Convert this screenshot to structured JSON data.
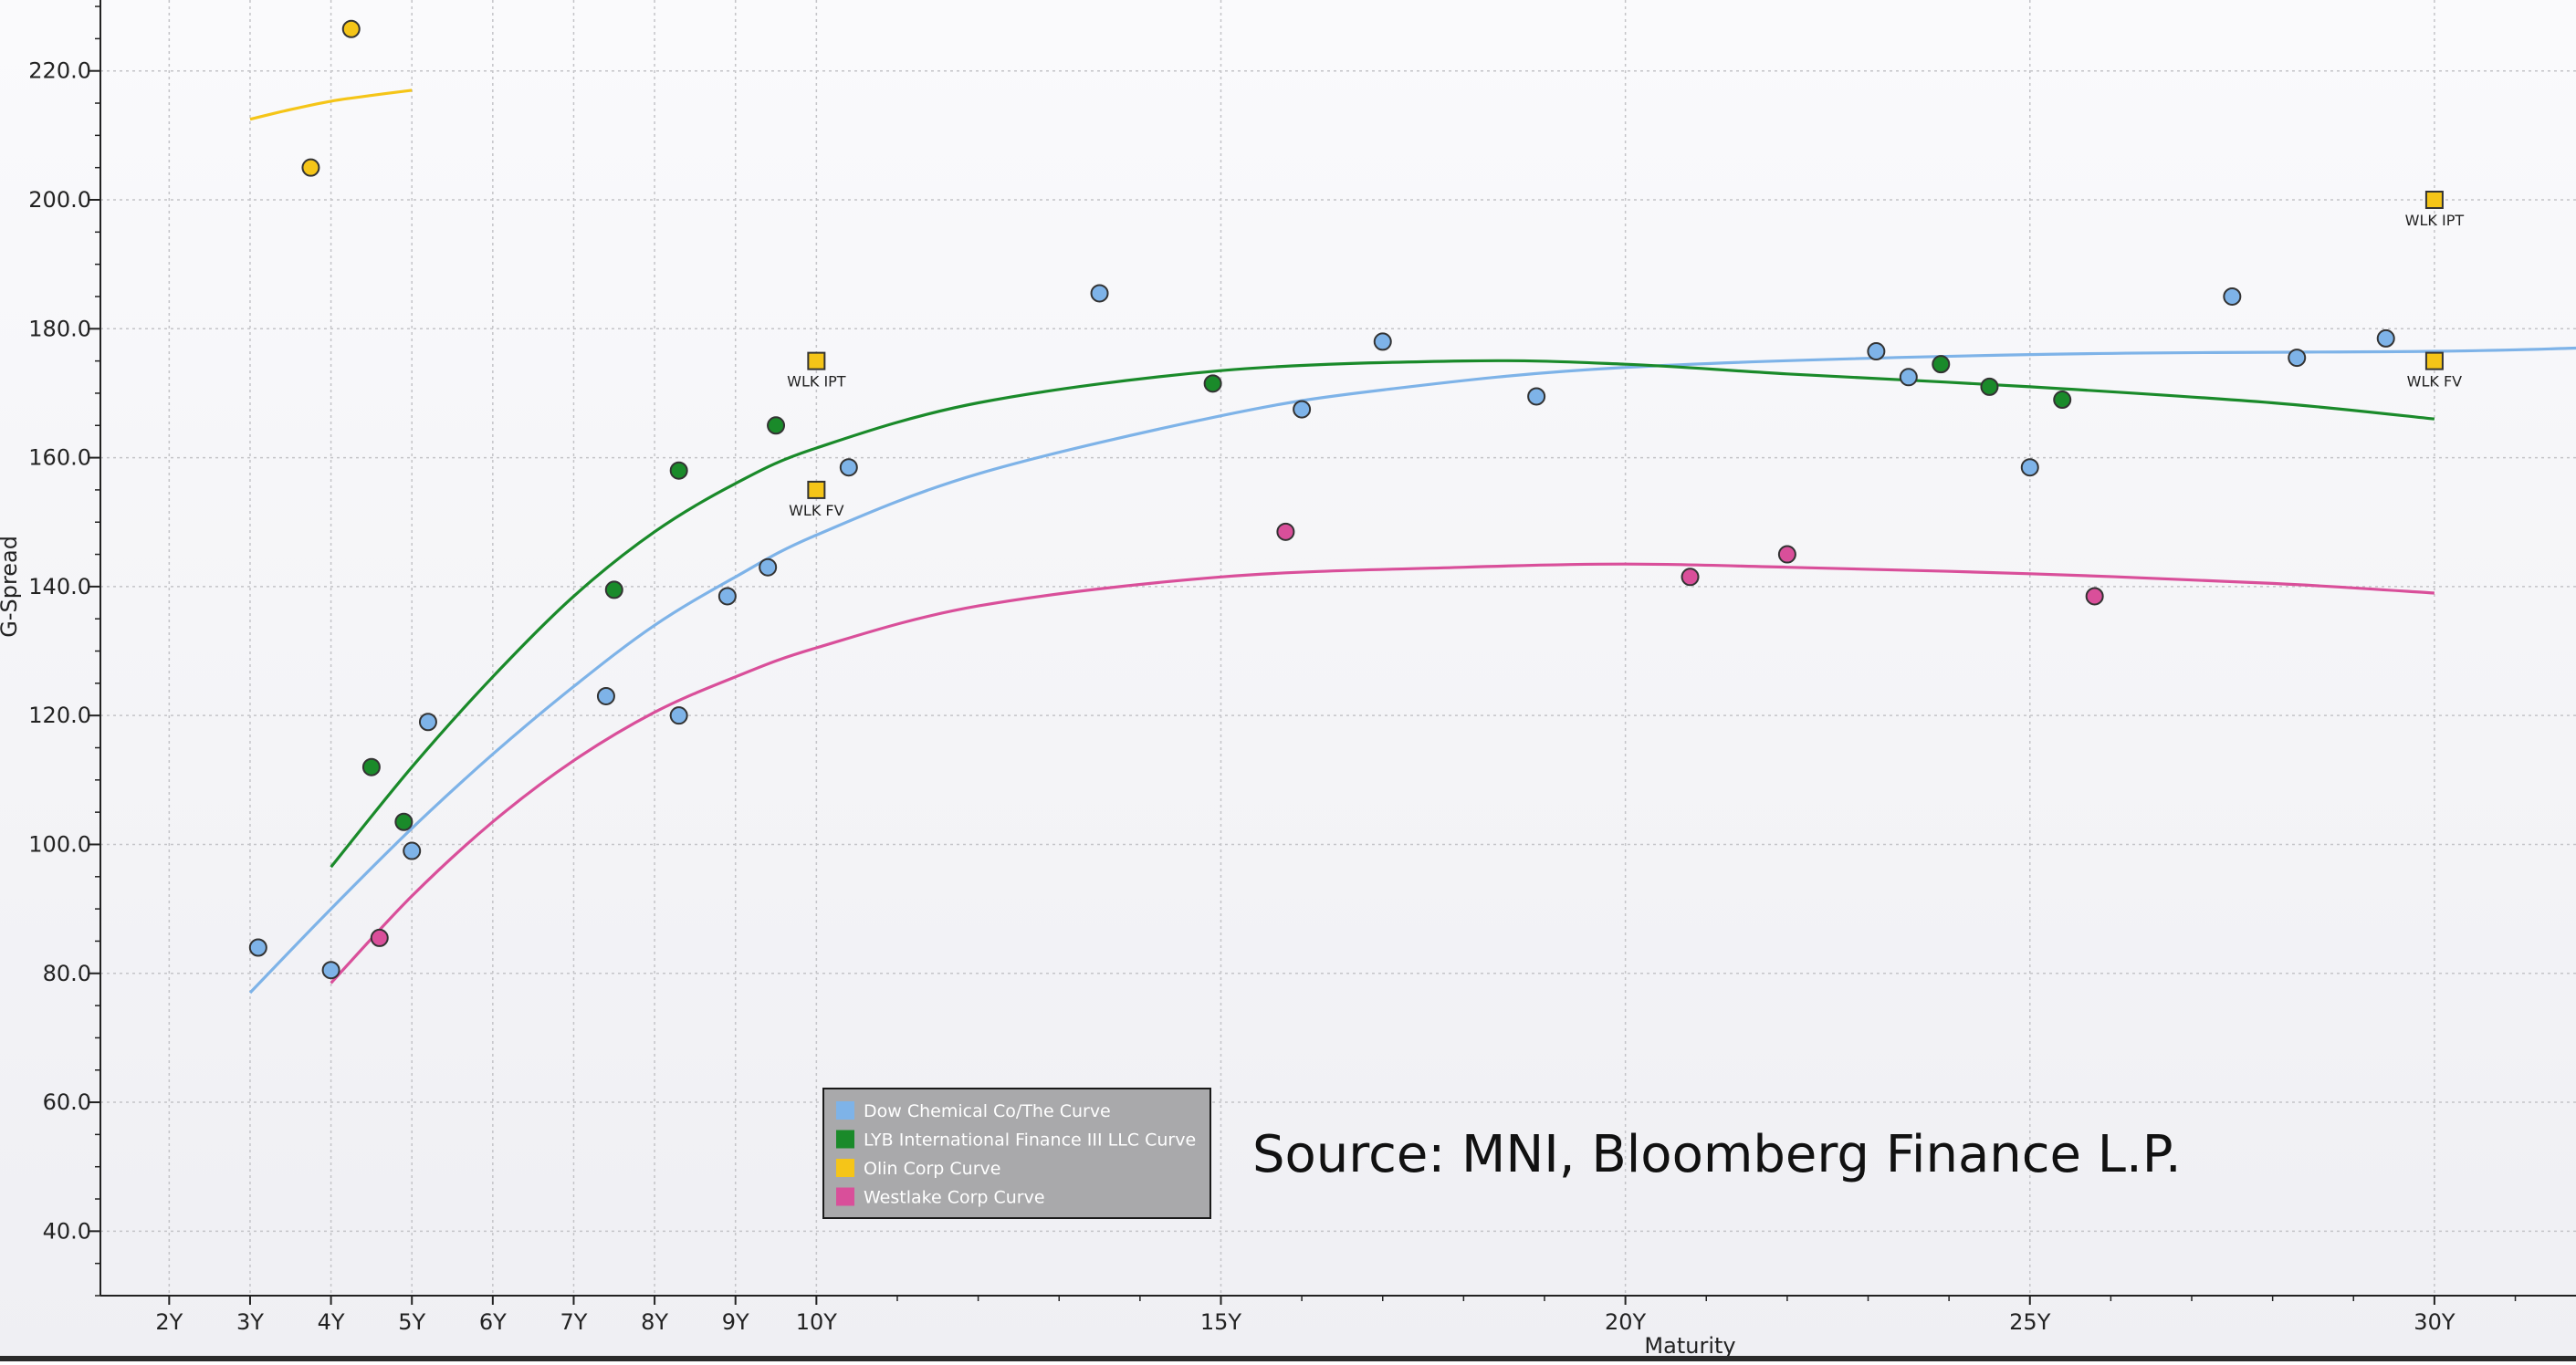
{
  "chart_data": {
    "type": "scatter",
    "title": "",
    "xlabel": "Maturity",
    "ylabel": "G-Spread",
    "source_note": "Source: MNI, Bloomberg Finance L.P.",
    "xlim": [
      1.15,
      31.75
    ],
    "ylim": [
      30,
      231
    ],
    "grid": true,
    "legend_position": "bottom-center",
    "x_ticks": [
      2,
      3,
      4,
      5,
      6,
      7,
      8,
      9,
      10,
      15,
      20,
      25,
      30
    ],
    "x_tick_labels": [
      "2Y",
      "3Y",
      "4Y",
      "5Y",
      "6Y",
      "7Y",
      "8Y",
      "9Y",
      "10Y",
      "15Y",
      "20Y",
      "25Y",
      "30Y"
    ],
    "y_ticks": [
      40,
      60,
      80,
      100,
      120,
      140,
      160,
      180,
      200,
      220
    ],
    "y_tick_labels": [
      "40.0",
      "60.0",
      "80.0",
      "100.0",
      "120.0",
      "140.0",
      "160.0",
      "180.0",
      "200.0",
      "220.0"
    ],
    "series": [
      {
        "name": "Dow Chemical Co/The Curve",
        "color": "#7eb3e8",
        "curve_color": "#7eb3e8",
        "points": [
          [
            3.1,
            84
          ],
          [
            4.0,
            80.5
          ],
          [
            5.0,
            99
          ],
          [
            5.2,
            119
          ],
          [
            7.4,
            123
          ],
          [
            8.3,
            120
          ],
          [
            8.9,
            138.5
          ],
          [
            9.4,
            143
          ],
          [
            10.4,
            158.5
          ],
          [
            13.5,
            185.5
          ],
          [
            16.0,
            167.5
          ],
          [
            17.0,
            178
          ],
          [
            18.9,
            169.5
          ],
          [
            23.1,
            176.5
          ],
          [
            23.5,
            172.5
          ],
          [
            25.0,
            158.5
          ],
          [
            27.5,
            185
          ],
          [
            28.3,
            175.5
          ],
          [
            29.4,
            178.5
          ]
        ],
        "curve": [
          [
            3,
            77
          ],
          [
            4,
            90
          ],
          [
            5,
            102.5
          ],
          [
            6,
            114
          ],
          [
            7,
            124.5
          ],
          [
            8,
            134
          ],
          [
            9,
            141.5
          ],
          [
            10,
            148
          ],
          [
            12,
            157.5
          ],
          [
            15,
            166.5
          ],
          [
            17,
            170.5
          ],
          [
            20,
            174
          ],
          [
            25,
            176
          ],
          [
            30,
            176.5
          ],
          [
            31.75,
            177
          ]
        ]
      },
      {
        "name": "LYB International Finance III LLC Curve",
        "color": "#1a8a2a",
        "curve_color": "#1a8a2a",
        "points": [
          [
            4.5,
            112
          ],
          [
            4.9,
            103.5
          ],
          [
            7.5,
            139.5
          ],
          [
            8.3,
            158
          ],
          [
            9.5,
            165
          ],
          [
            14.9,
            171.5
          ],
          [
            23.9,
            174.5
          ],
          [
            24.5,
            171
          ],
          [
            25.4,
            169
          ]
        ],
        "curve": [
          [
            4,
            96.5
          ],
          [
            5,
            112
          ],
          [
            6,
            126
          ],
          [
            7,
            138.5
          ],
          [
            8,
            148.5
          ],
          [
            9,
            156
          ],
          [
            10,
            161.5
          ],
          [
            12,
            168.5
          ],
          [
            15,
            173.5
          ],
          [
            18,
            175
          ],
          [
            20,
            174.5
          ],
          [
            22,
            173
          ],
          [
            25,
            171
          ],
          [
            28,
            168.5
          ],
          [
            30,
            166
          ]
        ]
      },
      {
        "name": "Olin Corp Curve",
        "color": "#f5c518",
        "curve_color": "#f5c518",
        "points": [
          [
            3.75,
            205
          ],
          [
            4.25,
            226.5
          ]
        ],
        "curve": [
          [
            3,
            212.5
          ],
          [
            3.5,
            214
          ],
          [
            4,
            215.3
          ],
          [
            4.5,
            216.2
          ],
          [
            5,
            217
          ]
        ]
      },
      {
        "name": "Westlake Corp Curve",
        "color": "#d94f9a",
        "curve_color": "#d94f9a",
        "points": [
          [
            4.6,
            85.5
          ],
          [
            15.8,
            148.5
          ],
          [
            20.8,
            141.5
          ],
          [
            22.0,
            145
          ],
          [
            25.8,
            138.5
          ]
        ],
        "curve": [
          [
            4,
            78.5
          ],
          [
            5,
            92
          ],
          [
            6,
            103.5
          ],
          [
            7,
            113
          ],
          [
            8,
            120.5
          ],
          [
            9,
            126
          ],
          [
            10,
            130.5
          ],
          [
            12,
            137
          ],
          [
            15,
            141.5
          ],
          [
            18,
            143
          ],
          [
            20,
            143.5
          ],
          [
            22,
            143
          ],
          [
            25,
            142
          ],
          [
            28,
            140.5
          ],
          [
            30,
            139
          ]
        ]
      }
    ],
    "markers": [
      {
        "label": "WLK IPT",
        "x": 10,
        "y": 175,
        "color": "#f5c518"
      },
      {
        "label": "WLK FV",
        "x": 10,
        "y": 155,
        "color": "#f5c518"
      },
      {
        "label": "WLK IPT",
        "x": 30,
        "y": 200,
        "color": "#f5c518"
      },
      {
        "label": "WLK FV",
        "x": 30,
        "y": 175,
        "color": "#f5c518"
      }
    ]
  }
}
